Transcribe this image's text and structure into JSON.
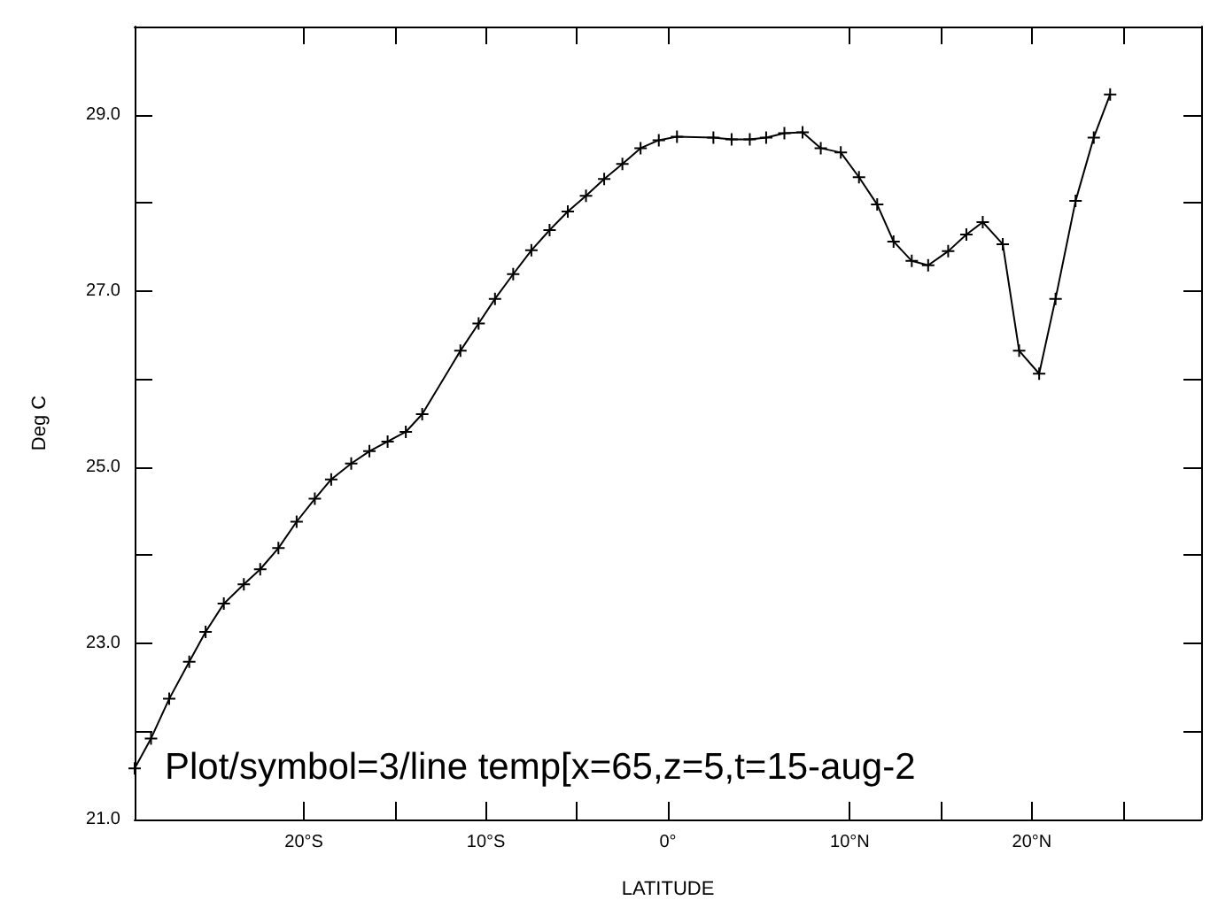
{
  "chart_data": {
    "type": "line",
    "xlabel": "LATITUDE",
    "ylabel": "Deg C",
    "annotations": [
      "Plot/symbol=3/line temp[x=65,z=5,t=15-aug-2"
    ],
    "x": [
      -29.3,
      -28.4,
      -27.4,
      -26.3,
      -25.4,
      -24.4,
      -23.3,
      -22.4,
      -21.4,
      -20.4,
      -19.4,
      -18.5,
      -17.4,
      -16.4,
      -15.4,
      -14.4,
      -13.5,
      -11.4,
      -10.4,
      -9.5,
      -8.5,
      -7.5,
      -6.5,
      -5.5,
      -4.5,
      -3.5,
      -2.5,
      -1.5,
      -0.5,
      0.5,
      2.5,
      3.5,
      4.5,
      5.4,
      6.4,
      7.4,
      8.4,
      9.5,
      10.5,
      11.5,
      12.4,
      13.4,
      14.3,
      15.4,
      16.4,
      17.3,
      18.4,
      19.3,
      20.4,
      21.3,
      22.4,
      23.4,
      24.3
    ],
    "series": [
      {
        "color": "#000000",
        "values": [
          21.58,
          21.92,
          22.37,
          22.79,
          23.13,
          23.45,
          23.67,
          23.84,
          24.08,
          24.38,
          24.64,
          24.86,
          25.04,
          25.18,
          25.29,
          25.4,
          25.6,
          26.32,
          26.63,
          26.91,
          27.19,
          27.46,
          27.69,
          27.9,
          28.08,
          28.27,
          28.44,
          28.62,
          28.71,
          28.75,
          28.74,
          28.72,
          28.72,
          28.74,
          28.79,
          28.8,
          28.62,
          28.57,
          28.29,
          27.98,
          27.56,
          27.34,
          27.29,
          27.45,
          27.64,
          27.78,
          27.53,
          26.32,
          26.06,
          26.91,
          28.02,
          28.74,
          29.23
        ]
      }
    ],
    "xlim": [
      -29.3,
      29.3
    ],
    "xticks": [
      {
        "value": -20,
        "label": "20°S"
      },
      {
        "value": -15,
        "label": null
      },
      {
        "value": -10,
        "label": "10°S"
      },
      {
        "value": -5,
        "label": null
      },
      {
        "value": 0,
        "label": "0°"
      },
      {
        "value": 10,
        "label": "10°N"
      },
      {
        "value": 15,
        "label": null
      },
      {
        "value": 20,
        "label": "20°N"
      },
      {
        "value": 25,
        "label": null
      }
    ],
    "ylim": [
      21,
      30
    ],
    "yticks": [
      {
        "value": 21,
        "label": "21.0"
      },
      {
        "value": 22,
        "label": null
      },
      {
        "value": 23,
        "label": "23.0"
      },
      {
        "value": 24,
        "label": null
      },
      {
        "value": 25,
        "label": "25.0"
      },
      {
        "value": 26,
        "label": null
      },
      {
        "value": 27,
        "label": "27.0"
      },
      {
        "value": 28,
        "label": null
      },
      {
        "value": 29,
        "label": "29.0"
      }
    ],
    "grid": false,
    "marker": "cross",
    "line_style": "solid"
  }
}
